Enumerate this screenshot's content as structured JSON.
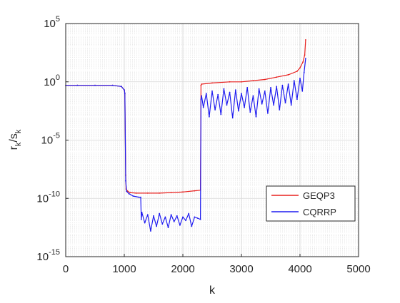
{
  "chart_data": {
    "type": "line",
    "title": "",
    "xlabel": "k",
    "ylabel_main": "r",
    "ylabel_main_sub": "k",
    "ylabel_sep": "/s",
    "ylabel_sep_sub": "k",
    "xlim": [
      0,
      5000
    ],
    "ylim_log10": [
      -15,
      5
    ],
    "y_scale": "log",
    "grid": true,
    "minor_grid": true,
    "legend_position": "lower-right",
    "x_ticks": [
      {
        "value": 0,
        "label": "0"
      },
      {
        "value": 1000,
        "label": "1000"
      },
      {
        "value": 2000,
        "label": "2000"
      },
      {
        "value": 3000,
        "label": "3000"
      },
      {
        "value": 4000,
        "label": "4000"
      },
      {
        "value": 5000,
        "label": "5000"
      }
    ],
    "y_ticks": [
      {
        "exp": 5,
        "base": "10",
        "sup": "5"
      },
      {
        "exp": 0,
        "base": "10",
        "sup": "0"
      },
      {
        "exp": -5,
        "base": "10",
        "sup": "-5"
      },
      {
        "exp": -10,
        "base": "10",
        "sup": "-10"
      },
      {
        "exp": -15,
        "base": "10",
        "sup": "-15"
      }
    ],
    "series": [
      {
        "name": "GEQP3",
        "color": "#e8201e",
        "x": [
          1,
          200,
          500,
          800,
          950,
          1000,
          1010,
          1024,
          1030,
          1060,
          1100,
          1200,
          1400,
          1600,
          1800,
          2000,
          2200,
          2300,
          2310,
          2320,
          2500,
          2800,
          3000,
          3200,
          3400,
          3600,
          3800,
          3950,
          4000,
          4050,
          4080,
          4096
        ],
        "y_log10": [
          -0.3,
          -0.3,
          -0.3,
          -0.3,
          -0.4,
          -0.7,
          -1.0,
          -8.0,
          -9.2,
          -9.4,
          -9.5,
          -9.55,
          -9.55,
          -9.55,
          -9.5,
          -9.45,
          -9.35,
          -9.3,
          -0.3,
          -0.2,
          -0.1,
          0.0,
          0.0,
          0.1,
          0.2,
          0.4,
          0.6,
          0.9,
          1.2,
          1.7,
          2.3,
          3.6
        ]
      },
      {
        "name": "CQRRP",
        "color": "#1f1cf0",
        "x": [
          1,
          200,
          500,
          800,
          950,
          1000,
          1010,
          1024,
          1040,
          1080,
          1150,
          1250,
          1280,
          1290,
          1300,
          1350,
          1400,
          1450,
          1500,
          1550,
          1600,
          1650,
          1700,
          1750,
          1800,
          1850,
          1900,
          1950,
          2000,
          2050,
          2100,
          2150,
          2200,
          2250,
          2300,
          2310,
          2320,
          2350,
          2400,
          2450,
          2500,
          2550,
          2600,
          2650,
          2700,
          2750,
          2800,
          2850,
          2900,
          2950,
          3000,
          3050,
          3100,
          3150,
          3200,
          3250,
          3300,
          3350,
          3400,
          3450,
          3500,
          3550,
          3600,
          3650,
          3700,
          3750,
          3800,
          3850,
          3900,
          3950,
          4000,
          4040,
          4070,
          4096
        ],
        "y_log10": [
          -0.3,
          -0.3,
          -0.3,
          -0.3,
          -0.4,
          -0.7,
          -1.0,
          -8.5,
          -9.4,
          -9.6,
          -9.8,
          -9.9,
          -9.9,
          -11.8,
          -11.2,
          -12.1,
          -11.4,
          -12.8,
          -11.5,
          -12.4,
          -11.3,
          -12.2,
          -11.6,
          -12.5,
          -11.4,
          -12.0,
          -11.5,
          -12.3,
          -11.6,
          -11.9,
          -11.3,
          -12.4,
          -11.6,
          -11.7,
          -11.8,
          -1.5,
          -1.2,
          -2.2,
          -1.0,
          -3.0,
          -0.8,
          -2.4,
          -1.1,
          -2.8,
          -0.6,
          -2.0,
          -0.9,
          -3.1,
          -0.7,
          -2.5,
          -1.0,
          -2.2,
          -0.5,
          -2.6,
          -1.2,
          -3.0,
          -0.6,
          -1.9,
          -0.8,
          -2.7,
          -0.5,
          -2.0,
          -0.4,
          -2.4,
          -0.3,
          -1.8,
          -0.2,
          -2.0,
          0.1,
          -1.5,
          0.3,
          -0.8,
          0.8,
          2.0
        ]
      }
    ]
  }
}
